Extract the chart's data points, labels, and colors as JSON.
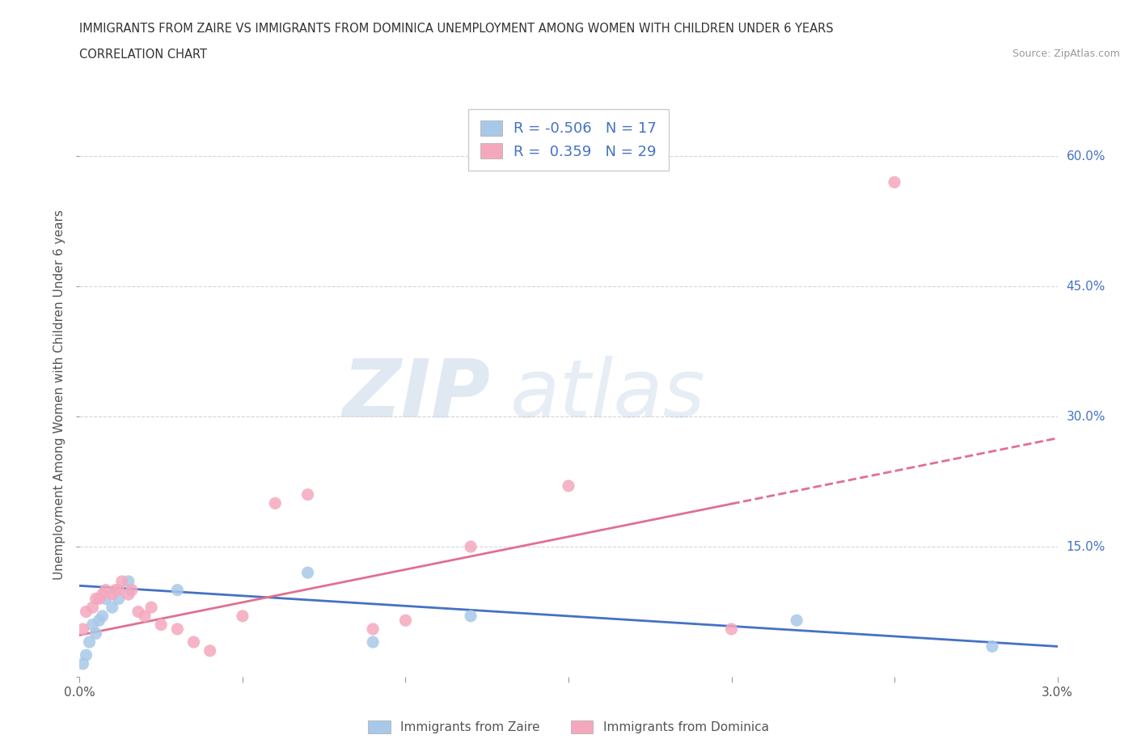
{
  "title_line1": "IMMIGRANTS FROM ZAIRE VS IMMIGRANTS FROM DOMINICA UNEMPLOYMENT AMONG WOMEN WITH CHILDREN UNDER 6 YEARS",
  "title_line2": "CORRELATION CHART",
  "source": "Source: ZipAtlas.com",
  "ylabel": "Unemployment Among Women with Children Under 6 years",
  "xlim": [
    0.0,
    0.03
  ],
  "ylim": [
    0.0,
    0.65
  ],
  "xticks": [
    0.0,
    0.005,
    0.01,
    0.015,
    0.02,
    0.025,
    0.03
  ],
  "xtick_labels": [
    "0.0%",
    "",
    "",
    "",
    "",
    "",
    "3.0%"
  ],
  "yticks": [
    0.0,
    0.15,
    0.3,
    0.45,
    0.6
  ],
  "ytick_labels": [
    "",
    "15.0%",
    "30.0%",
    "45.0%",
    "60.0%"
  ],
  "zaire_color": "#a8c8e8",
  "dominica_color": "#f4a8be",
  "zaire_line_color": "#4472c4",
  "dominica_line_color": "#e07090",
  "R_zaire": -0.506,
  "N_zaire": 17,
  "R_dominica": 0.359,
  "N_dominica": 29,
  "legend_label_zaire": "Immigrants from Zaire",
  "legend_label_dominica": "Immigrants from Dominica",
  "watermark_zip": "ZIP",
  "watermark_atlas": "atlas",
  "background_color": "#ffffff",
  "zaire_x": [
    0.0001,
    0.0002,
    0.0003,
    0.0004,
    0.0005,
    0.0006,
    0.0007,
    0.0008,
    0.001,
    0.0012,
    0.0015,
    0.003,
    0.007,
    0.009,
    0.012,
    0.022,
    0.028
  ],
  "zaire_y": [
    0.015,
    0.025,
    0.04,
    0.06,
    0.05,
    0.065,
    0.07,
    0.09,
    0.08,
    0.09,
    0.11,
    0.1,
    0.12,
    0.04,
    0.07,
    0.065,
    0.035
  ],
  "dominica_x": [
    0.0001,
    0.0002,
    0.0004,
    0.0005,
    0.0006,
    0.0007,
    0.0008,
    0.001,
    0.0011,
    0.0012,
    0.0013,
    0.0015,
    0.0016,
    0.0018,
    0.002,
    0.0022,
    0.0025,
    0.003,
    0.0035,
    0.004,
    0.005,
    0.006,
    0.007,
    0.009,
    0.01,
    0.012,
    0.015,
    0.02,
    0.025
  ],
  "dominica_y": [
    0.055,
    0.075,
    0.08,
    0.09,
    0.09,
    0.095,
    0.1,
    0.095,
    0.1,
    0.1,
    0.11,
    0.095,
    0.1,
    0.075,
    0.07,
    0.08,
    0.06,
    0.055,
    0.04,
    0.03,
    0.07,
    0.2,
    0.21,
    0.055,
    0.065,
    0.15,
    0.22,
    0.055,
    0.57
  ]
}
